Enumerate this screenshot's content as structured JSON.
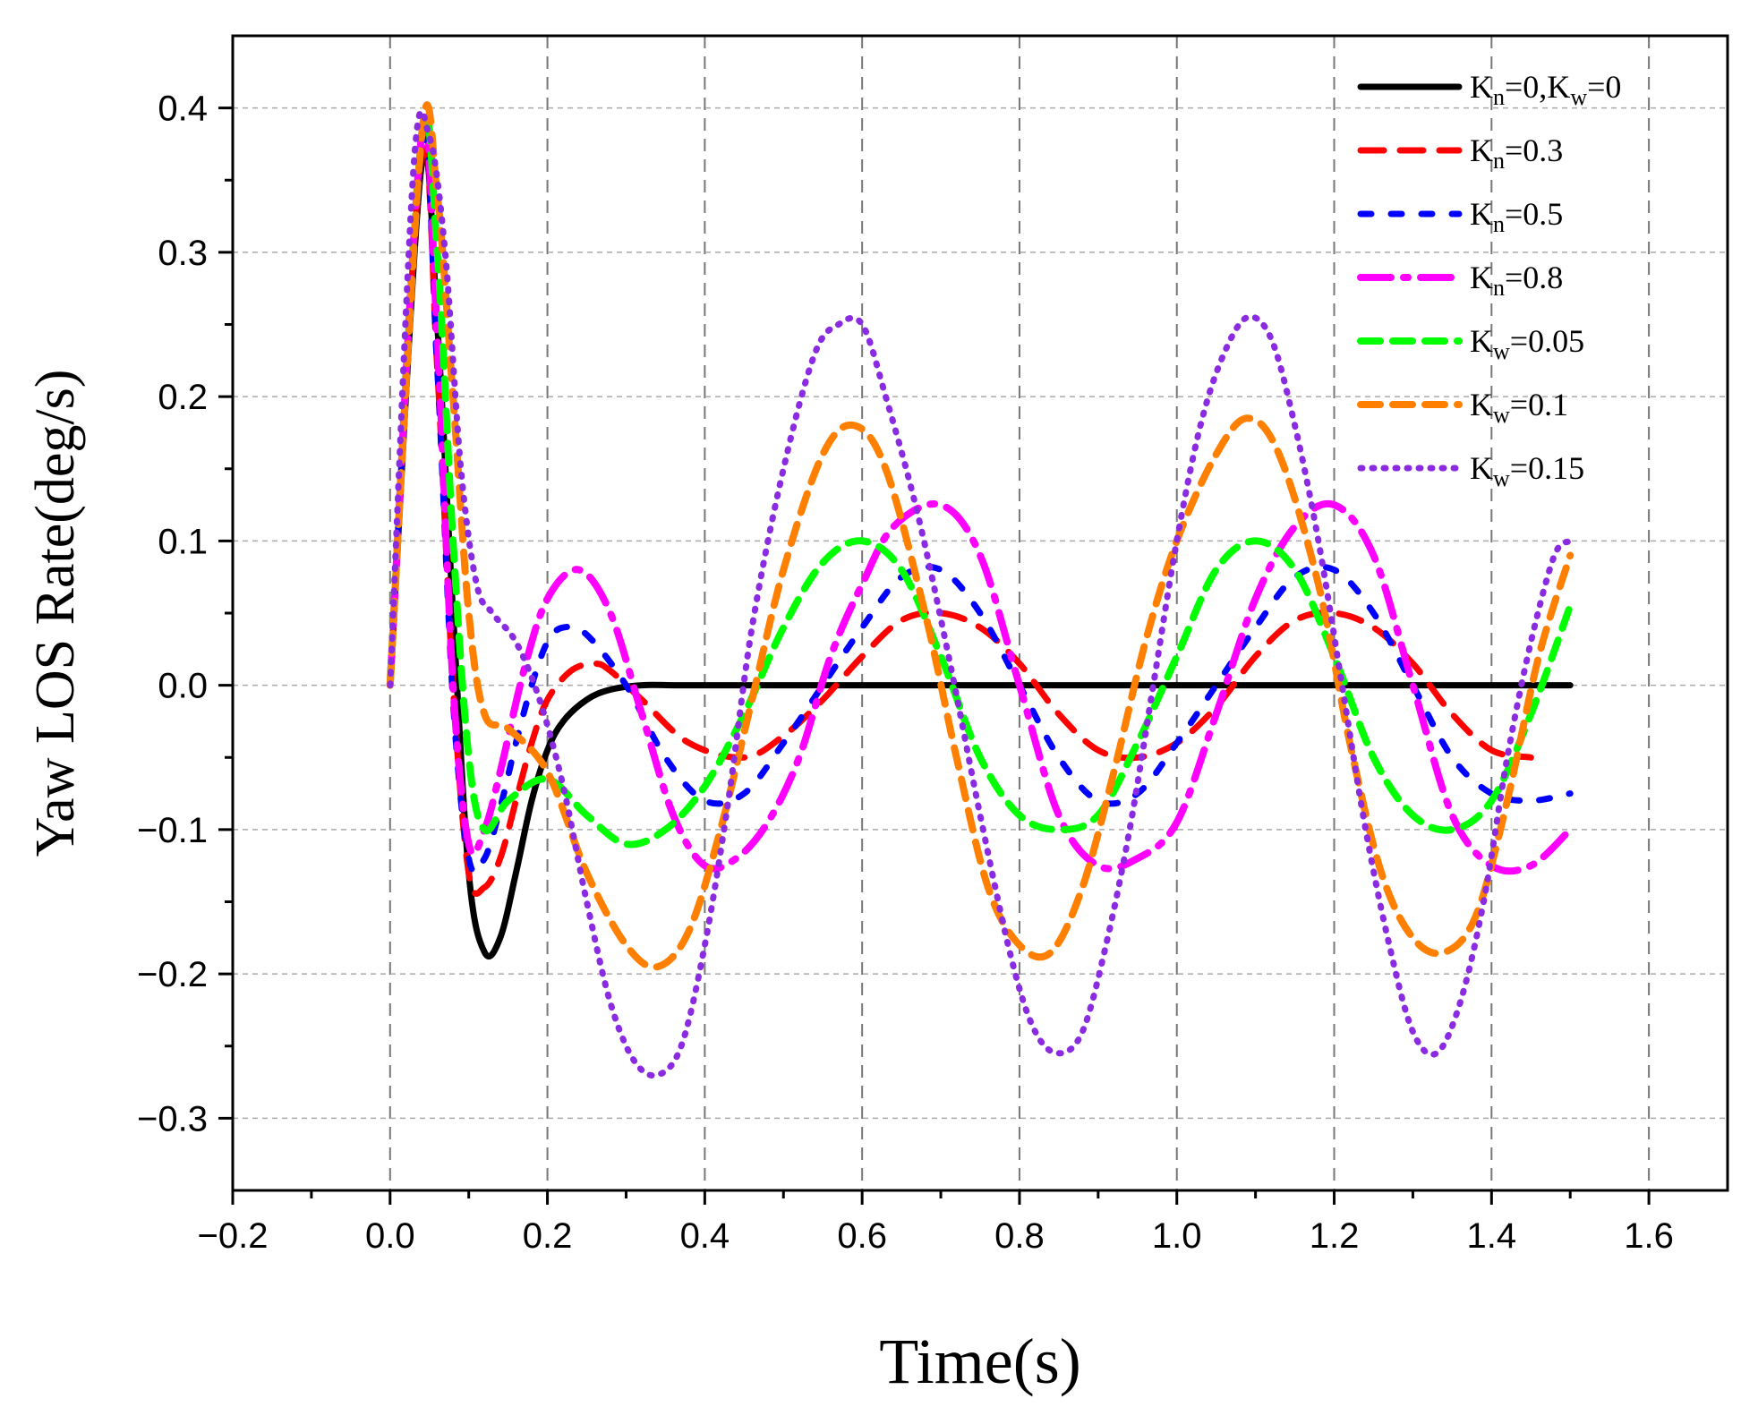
{
  "chart_data": {
    "type": "line",
    "title": "",
    "xlabel": "Time(s)",
    "ylabel": "Yaw LOS Rate(deg/s)",
    "xlim": [
      -0.2,
      1.7
    ],
    "ylim": [
      -0.35,
      0.45
    ],
    "grid": true,
    "legend_position": "top-right",
    "x_ticks": [
      -0.2,
      0.0,
      0.2,
      0.4,
      0.6,
      0.8,
      1.0,
      1.2,
      1.4,
      1.6
    ],
    "x_tick_labels": [
      "−0.2",
      "0.0",
      "0.2",
      "0.4",
      "0.6",
      "0.8",
      "1.0",
      "1.2",
      "1.4",
      "1.6"
    ],
    "y_ticks": [
      -0.3,
      -0.2,
      -0.1,
      0.0,
      0.1,
      0.2,
      0.3,
      0.4
    ],
    "y_tick_labels": [
      "−0.3",
      "−0.2",
      "−0.1",
      "0.0",
      "0.1",
      "0.2",
      "0.3",
      "0.4"
    ],
    "series": [
      {
        "name": "Kn=0,Kw=0",
        "legend": {
          "k1": "K",
          "s1": "n",
          "v1": "=0,",
          "k2": "K",
          "s2": "w",
          "v2": "=0"
        },
        "color": "#000000",
        "dash": "solid",
        "width": 7,
        "x": [
          0.0,
          0.04,
          0.06,
          0.08,
          0.1,
          0.12,
          0.14,
          0.16,
          0.18,
          0.2,
          0.22,
          0.25,
          0.28,
          0.32,
          0.36,
          0.4,
          0.45,
          0.6,
          0.8,
          1.0,
          1.2,
          1.5
        ],
        "y": [
          0.0,
          0.36,
          0.25,
          0.05,
          -0.13,
          -0.185,
          -0.175,
          -0.13,
          -0.08,
          -0.045,
          -0.025,
          -0.01,
          -0.003,
          0.0,
          0.0,
          0.0,
          0.0,
          0.0,
          0.0,
          0.0,
          0.0,
          0.0
        ]
      },
      {
        "name": "Kn=0.3",
        "legend": {
          "k1": "K",
          "s1": "n",
          "v1": "=0.3"
        },
        "color": "#ff0000",
        "dash": "long-dash",
        "width": 7,
        "x": [
          0.0,
          0.04,
          0.06,
          0.08,
          0.1,
          0.12,
          0.14,
          0.16,
          0.18,
          0.2,
          0.23,
          0.26,
          0.28,
          0.32,
          0.38,
          0.45,
          0.5,
          0.55,
          0.6,
          0.65,
          0.7,
          0.75,
          0.8,
          0.85,
          0.9,
          0.95,
          1.0,
          1.05,
          1.1,
          1.15,
          1.2,
          1.25,
          1.3,
          1.35,
          1.4,
          1.45
        ],
        "y": [
          0.0,
          0.37,
          0.22,
          0.0,
          -0.13,
          -0.14,
          -0.12,
          -0.08,
          -0.04,
          -0.01,
          0.01,
          0.015,
          0.01,
          -0.01,
          -0.04,
          -0.05,
          -0.035,
          -0.01,
          0.02,
          0.045,
          0.05,
          0.04,
          0.015,
          -0.02,
          -0.045,
          -0.05,
          -0.04,
          -0.015,
          0.02,
          0.045,
          0.05,
          0.04,
          0.015,
          -0.02,
          -0.045,
          -0.05
        ]
      },
      {
        "name": "Kn=0.5",
        "legend": {
          "k1": "K",
          "s1": "n",
          "v1": "=0.5"
        },
        "color": "#0000ff",
        "dash": "dash-dot",
        "width": 7,
        "x": [
          0.0,
          0.04,
          0.06,
          0.08,
          0.1,
          0.12,
          0.14,
          0.16,
          0.18,
          0.2,
          0.22,
          0.25,
          0.3,
          0.35,
          0.4,
          0.45,
          0.5,
          0.55,
          0.6,
          0.65,
          0.7,
          0.75,
          0.8,
          0.85,
          0.9,
          0.95,
          1.0,
          1.05,
          1.1,
          1.15,
          1.2,
          1.25,
          1.3,
          1.35,
          1.4,
          1.45,
          1.5
        ],
        "y": [
          0.0,
          0.375,
          0.22,
          -0.01,
          -0.12,
          -0.12,
          -0.085,
          -0.04,
          0.0,
          0.03,
          0.04,
          0.035,
          0.0,
          -0.05,
          -0.08,
          -0.075,
          -0.04,
          0.0,
          0.04,
          0.075,
          0.08,
          0.05,
          0.0,
          -0.05,
          -0.08,
          -0.075,
          -0.04,
          0.0,
          0.04,
          0.075,
          0.08,
          0.05,
          0.0,
          -0.05,
          -0.075,
          -0.08,
          -0.075
        ]
      },
      {
        "name": "Kn=0.8",
        "legend": {
          "k1": "K",
          "s1": "n",
          "v1": "=0.8"
        },
        "color": "#ff00ff",
        "dash": "dash-long",
        "width": 8,
        "x": [
          0.0,
          0.04,
          0.06,
          0.08,
          0.1,
          0.12,
          0.14,
          0.17,
          0.2,
          0.24,
          0.28,
          0.32,
          0.36,
          0.4,
          0.44,
          0.48,
          0.52,
          0.56,
          0.6,
          0.64,
          0.7,
          0.75,
          0.8,
          0.85,
          0.9,
          0.95,
          1.0,
          1.05,
          1.1,
          1.15,
          1.2,
          1.25,
          1.3,
          1.35,
          1.4,
          1.45,
          1.5
        ],
        "y": [
          0.0,
          0.38,
          0.24,
          0.0,
          -0.11,
          -0.1,
          -0.06,
          0.01,
          0.06,
          0.08,
          0.05,
          -0.02,
          -0.09,
          -0.125,
          -0.12,
          -0.095,
          -0.05,
          0.02,
          0.07,
          0.11,
          0.125,
          0.09,
          0.0,
          -0.09,
          -0.125,
          -0.12,
          -0.095,
          -0.02,
          0.06,
          0.11,
          0.125,
          0.09,
          0.0,
          -0.09,
          -0.125,
          -0.125,
          -0.1
        ]
      },
      {
        "name": "Kw=0.05",
        "legend": {
          "k1": "K",
          "s1": "w",
          "v1": "=0.05"
        },
        "color": "#00ff00",
        "dash": "dash",
        "width": 8,
        "x": [
          0.0,
          0.04,
          0.06,
          0.08,
          0.1,
          0.12,
          0.15,
          0.2,
          0.25,
          0.3,
          0.35,
          0.4,
          0.45,
          0.5,
          0.55,
          0.6,
          0.65,
          0.7,
          0.75,
          0.8,
          0.85,
          0.9,
          0.95,
          1.0,
          1.05,
          1.1,
          1.15,
          1.2,
          1.25,
          1.3,
          1.35,
          1.4,
          1.45,
          1.5
        ],
        "y": [
          0.0,
          0.38,
          0.3,
          0.1,
          -0.05,
          -0.1,
          -0.08,
          -0.065,
          -0.09,
          -0.11,
          -0.1,
          -0.07,
          -0.02,
          0.04,
          0.085,
          0.1,
          0.08,
          0.02,
          -0.05,
          -0.09,
          -0.1,
          -0.09,
          -0.04,
          0.02,
          0.08,
          0.1,
          0.08,
          0.02,
          -0.05,
          -0.09,
          -0.1,
          -0.08,
          -0.02,
          0.055
        ]
      },
      {
        "name": "Kw=0.1",
        "legend": {
          "k1": "K",
          "s1": "w",
          "v1": "=0.1"
        },
        "color": "#ff8000",
        "dash": "dash",
        "width": 8,
        "x": [
          0.0,
          0.04,
          0.06,
          0.08,
          0.1,
          0.12,
          0.15,
          0.2,
          0.25,
          0.3,
          0.34,
          0.38,
          0.42,
          0.46,
          0.5,
          0.55,
          0.59,
          0.63,
          0.68,
          0.72,
          0.76,
          0.8,
          0.84,
          0.88,
          0.92,
          0.96,
          1.0,
          1.05,
          1.09,
          1.13,
          1.18,
          1.22,
          1.26,
          1.3,
          1.34,
          1.38,
          1.42,
          1.46,
          1.5
        ],
        "y": [
          0.0,
          0.38,
          0.34,
          0.2,
          0.05,
          -0.02,
          -0.03,
          -0.06,
          -0.13,
          -0.18,
          -0.195,
          -0.17,
          -0.1,
          -0.01,
          0.08,
          0.16,
          0.18,
          0.15,
          0.05,
          -0.05,
          -0.14,
          -0.18,
          -0.185,
          -0.14,
          -0.06,
          0.03,
          0.1,
          0.16,
          0.185,
          0.16,
          0.07,
          -0.04,
          -0.13,
          -0.175,
          -0.185,
          -0.16,
          -0.08,
          0.02,
          0.09
        ]
      },
      {
        "name": "Kw=0.15",
        "legend": {
          "k1": "K",
          "s1": "w",
          "v1": "=0.15"
        },
        "color": "#8a2be2",
        "dash": "dot",
        "width": 7,
        "x": [
          0.0,
          0.03,
          0.05,
          0.07,
          0.09,
          0.11,
          0.13,
          0.16,
          0.19,
          0.22,
          0.25,
          0.28,
          0.31,
          0.34,
          0.37,
          0.4,
          0.43,
          0.46,
          0.5,
          0.54,
          0.57,
          0.6,
          0.63,
          0.67,
          0.71,
          0.75,
          0.79,
          0.82,
          0.85,
          0.88,
          0.91,
          0.94,
          0.97,
          1.0,
          1.03,
          1.06,
          1.09,
          1.12,
          1.15,
          1.18,
          1.21,
          1.24,
          1.27,
          1.3,
          1.33,
          1.36,
          1.39,
          1.42,
          1.45,
          1.48,
          1.5
        ],
        "y": [
          0.0,
          0.36,
          0.38,
          0.3,
          0.15,
          0.07,
          0.05,
          0.03,
          -0.01,
          -0.07,
          -0.15,
          -0.22,
          -0.26,
          -0.27,
          -0.25,
          -0.18,
          -0.08,
          0.04,
          0.15,
          0.23,
          0.25,
          0.25,
          0.2,
          0.12,
          0.02,
          -0.09,
          -0.19,
          -0.24,
          -0.255,
          -0.24,
          -0.18,
          -0.1,
          0.0,
          0.1,
          0.18,
          0.23,
          0.255,
          0.24,
          0.18,
          0.1,
          0.0,
          -0.1,
          -0.18,
          -0.24,
          -0.255,
          -0.22,
          -0.15,
          -0.05,
          0.03,
          0.09,
          0.1
        ]
      }
    ]
  }
}
